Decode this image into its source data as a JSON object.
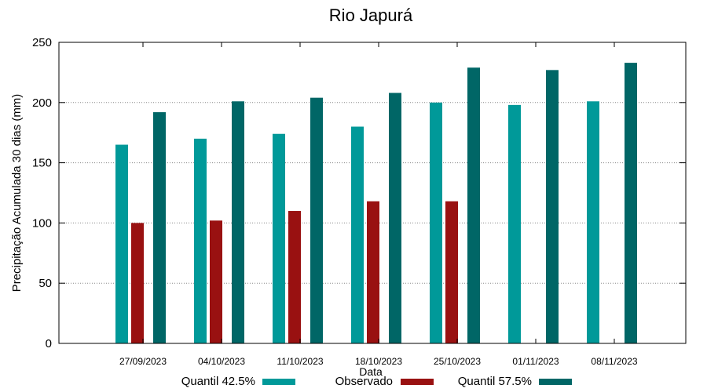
{
  "chart_data": {
    "type": "bar",
    "title": "Rio Japurá",
    "xlabel": "Data",
    "ylabel": "Precipitação Acumulada 30 dias (mm)",
    "ylim": [
      0,
      250
    ],
    "yticks": [
      0,
      50,
      100,
      150,
      200,
      250
    ],
    "grid": true,
    "legend_position": "bottom",
    "categories": [
      "27/09/2023",
      "04/10/2023",
      "11/10/2023",
      "18/10/2023",
      "25/10/2023",
      "01/11/2023",
      "08/11/2023"
    ],
    "series": [
      {
        "name": "Quantil 42.5%",
        "color": "#009999",
        "values": [
          165,
          170,
          174,
          180,
          200,
          198,
          201
        ]
      },
      {
        "name": "Observado",
        "color": "#991111",
        "values": [
          100,
          102,
          110,
          118,
          118,
          null,
          null
        ]
      },
      {
        "name": "Quantil 57.5%",
        "color": "#006666",
        "values": [
          192,
          201,
          204,
          208,
          229,
          227,
          233
        ]
      }
    ]
  }
}
